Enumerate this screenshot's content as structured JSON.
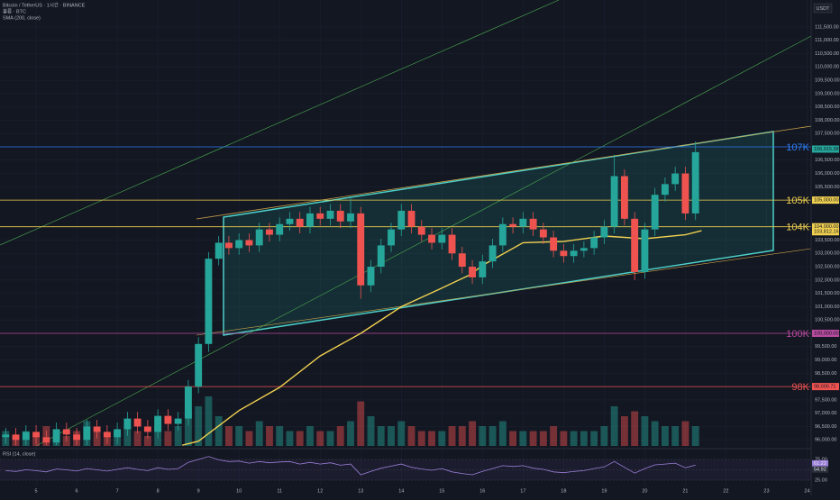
{
  "chart_data": {
    "type": "candlestick",
    "title": "Bitcoin / TetherUS · 1시간 · BINANCE",
    "subtitle": "볼륨 · BTC",
    "indicator_label": "SMA (200, close)",
    "currency": "USDT",
    "up_color": "#26a69a",
    "down_color": "#ef5350",
    "xlim": [
      4.11,
      24.1
    ],
    "xticks": [
      5,
      6,
      7,
      8,
      9,
      10,
      11,
      12,
      13,
      14,
      15,
      16,
      17,
      18,
      19,
      20,
      21,
      22,
      23,
      24
    ],
    "ylim": [
      95772,
      112512
    ],
    "yticks": [
      {
        "value": 96000,
        "label": "96,000.00"
      },
      {
        "value": 96500,
        "label": "96,500.00"
      },
      {
        "value": 97000,
        "label": "97,000.00"
      },
      {
        "value": 97500,
        "label": "97,500.00"
      },
      {
        "value": 98000,
        "label": "98,000.00"
      },
      {
        "value": 98500,
        "label": "98,500.00"
      },
      {
        "value": 99000,
        "label": "99,000.00"
      },
      {
        "value": 99500,
        "label": "99,500.00"
      },
      {
        "value": 100500,
        "label": "100,500.00"
      },
      {
        "value": 101000,
        "label": "101,000.00"
      },
      {
        "value": 101500,
        "label": "101,500.00"
      },
      {
        "value": 102000,
        "label": "102,000.00"
      },
      {
        "value": 102500,
        "label": "102,500.00"
      },
      {
        "value": 103000,
        "label": "103,000.00"
      },
      {
        "value": 103500,
        "label": "103,500.00"
      },
      {
        "value": 105500,
        "label": "105,500.00"
      },
      {
        "value": 106000,
        "label": "106,000.00"
      },
      {
        "value": 106500,
        "label": "106,500.00"
      },
      {
        "value": 107500,
        "label": "107,500.00"
      },
      {
        "value": 108000,
        "label": "108,000.00"
      },
      {
        "value": 108500,
        "label": "108,500.00"
      },
      {
        "value": 109000,
        "label": "109,000.00"
      },
      {
        "value": 109500,
        "label": "109,500.00"
      },
      {
        "value": 110000,
        "label": "110,000.00"
      },
      {
        "value": 110500,
        "label": "110,500.00"
      },
      {
        "value": 111000,
        "label": "111,000.00"
      },
      {
        "value": 111500,
        "label": "111,500.00"
      }
    ],
    "grid": true,
    "x": [
      4.25,
      4.5,
      4.75,
      5,
      5.25,
      5.5,
      5.75,
      6,
      6.25,
      6.5,
      6.75,
      7,
      7.25,
      7.5,
      7.75,
      8,
      8.25,
      8.5,
      8.75,
      9,
      9.25,
      9.5,
      9.75,
      10,
      10.25,
      10.5,
      10.75,
      11,
      11.25,
      11.5,
      11.75,
      12,
      12.25,
      12.5,
      12.75,
      13,
      13.25,
      13.5,
      13.75,
      14,
      14.25,
      14.5,
      14.75,
      15,
      15.25,
      15.5,
      15.75,
      16,
      16.25,
      16.5,
      16.75,
      17,
      17.25,
      17.5,
      17.75,
      18,
      18.25,
      18.5,
      18.75,
      19,
      19.25,
      19.5,
      19.75,
      20,
      20.25,
      20.5,
      20.75,
      21,
      21.25
    ],
    "open": [
      96100,
      96200,
      96000,
      96300,
      96100,
      95900,
      96400,
      96200,
      96000,
      96500,
      96300,
      96100,
      96400,
      96800,
      96500,
      96300,
      96900,
      96600,
      96800,
      98000,
      99600,
      102800,
      103400,
      103200,
      103500,
      103300,
      103900,
      103700,
      104100,
      104300,
      104000,
      104500,
      104300,
      104600,
      104200,
      104500,
      101800,
      102500,
      103300,
      103900,
      104600,
      104000,
      103700,
      103400,
      103700,
      103000,
      102500,
      102100,
      102700,
      103300,
      104100,
      104000,
      104300,
      103900,
      103600,
      103100,
      102900,
      103100,
      103200,
      103600,
      104000,
      105900,
      104300,
      102300,
      103900,
      105200,
      105600,
      106000,
      104500
    ],
    "high": [
      96450,
      96450,
      96550,
      96550,
      96350,
      96650,
      96650,
      96450,
      96750,
      96750,
      96550,
      96650,
      97050,
      97050,
      96750,
      97150,
      97150,
      97050,
      98250,
      99850,
      103050,
      103650,
      103650,
      103750,
      103750,
      104150,
      104150,
      104350,
      104550,
      104550,
      104750,
      104750,
      104850,
      104850,
      105100,
      104750,
      102750,
      103550,
      104150,
      104850,
      104850,
      104250,
      103950,
      103950,
      103950,
      103250,
      102750,
      102950,
      103550,
      104350,
      104350,
      104550,
      104550,
      104150,
      103850,
      103350,
      103350,
      103450,
      103850,
      104250,
      106700,
      106150,
      104550,
      104150,
      105450,
      105850,
      106250,
      106250,
      107200
    ],
    "low": [
      95850,
      95800,
      95800,
      95850,
      95800,
      95800,
      95950,
      95800,
      95800,
      96050,
      95850,
      95850,
      96150,
      96250,
      96050,
      96050,
      96350,
      96350,
      96550,
      97750,
      99300,
      102550,
      102950,
      102950,
      103050,
      103050,
      103450,
      103450,
      103850,
      103750,
      103750,
      104050,
      104050,
      103950,
      103950,
      101300,
      101550,
      102250,
      103050,
      103650,
      103750,
      103450,
      103150,
      103150,
      102750,
      102250,
      101850,
      101850,
      102450,
      103050,
      103750,
      103750,
      103650,
      103350,
      102850,
      102650,
      102650,
      102850,
      102950,
      103350,
      103750,
      104050,
      102000,
      102050,
      103650,
      104950,
      105350,
      104250,
      104250
    ],
    "close": [
      96200,
      96000,
      96300,
      96100,
      95900,
      96400,
      96200,
      96000,
      96500,
      96300,
      96100,
      96400,
      96800,
      96500,
      96300,
      96900,
      96600,
      96800,
      98000,
      99600,
      102800,
      103400,
      103200,
      103500,
      103300,
      103900,
      103700,
      104100,
      104300,
      104000,
      104500,
      104300,
      104600,
      104200,
      104500,
      101800,
      102500,
      103300,
      103900,
      104600,
      104000,
      103700,
      103400,
      103700,
      103000,
      102500,
      102100,
      102700,
      103300,
      104100,
      104000,
      104300,
      103900,
      103600,
      103100,
      102900,
      103100,
      103200,
      103600,
      104000,
      105900,
      104300,
      102300,
      103900,
      105200,
      105600,
      106000,
      104500,
      106800
    ],
    "volume": [
      3,
      2,
      3,
      2,
      4,
      3,
      2,
      3,
      5,
      3,
      2,
      3,
      4,
      3,
      2,
      4,
      3,
      4,
      7,
      8,
      10,
      6,
      4,
      4,
      3,
      5,
      4,
      4,
      3,
      3,
      4,
      3,
      3,
      4,
      5,
      9,
      6,
      4,
      4,
      5,
      4,
      3,
      3,
      3,
      4,
      4,
      5,
      4,
      4,
      5,
      3,
      3,
      3,
      3,
      4,
      3,
      3,
      3,
      3,
      4,
      8,
      6,
      7,
      6,
      5,
      4,
      4,
      5,
      4
    ],
    "sma": {
      "name": "SMA",
      "color": "#f0d050",
      "x": [
        8.6,
        9,
        10,
        11,
        12,
        13,
        14,
        15,
        15.7,
        16,
        17,
        18,
        19,
        20,
        21,
        21.4
      ],
      "values": [
        95800,
        95950,
        97100,
        97970,
        99150,
        100000,
        101000,
        101700,
        102200,
        102550,
        103400,
        103450,
        103650,
        103550,
        103700,
        103850
      ]
    },
    "levels": [
      {
        "value": 107000,
        "label": "107K",
        "color": "#2f7df6"
      },
      {
        "value": 105000,
        "label": "105K",
        "color": "#f0d050"
      },
      {
        "value": 104000,
        "label": "104K",
        "color": "#f0d050"
      },
      {
        "value": 100000,
        "label": "100K",
        "color": "#b84b9e"
      },
      {
        "value": 98000,
        "label": "98K",
        "color": "#ef5350"
      }
    ],
    "price_tags": [
      {
        "value": 106915.38,
        "label": "106,915.38",
        "color": "#26a69a"
      },
      {
        "value": 105000,
        "label": "105,000.00",
        "color": "#f0d050"
      },
      {
        "value": 104000,
        "label": "104,000.00",
        "color": "#f0d050"
      },
      {
        "value": 103812.16,
        "label": "103,812.16",
        "color": "#f0d050"
      },
      {
        "value": 100000,
        "label": "100,000.00",
        "color": "#b84b9e"
      },
      {
        "value": 98000.71,
        "label": "98,000.71",
        "color": "#ef5350"
      }
    ],
    "rsi": {
      "name": "RSI (14, close)",
      "color": "#9c7fd8",
      "ylim": [
        9.8,
        96.7
      ],
      "yticks": [
        {
          "value": 75,
          "label": "75.00"
        },
        {
          "value": 50,
          "label": "50.00"
        },
        {
          "value": 25,
          "label": "25.00"
        }
      ],
      "values": [
        48,
        46,
        50,
        48,
        45,
        52,
        50,
        47,
        53,
        50,
        47,
        51,
        55,
        51,
        48,
        55,
        51,
        53,
        68,
        75,
        82,
        74,
        70,
        71,
        66,
        70,
        67,
        69,
        70,
        64,
        68,
        64,
        67,
        61,
        64,
        38,
        46,
        54,
        59,
        64,
        56,
        52,
        49,
        53,
        45,
        41,
        38,
        46,
        53,
        60,
        58,
        60,
        54,
        51,
        45,
        43,
        46,
        48,
        53,
        57,
        70,
        56,
        42,
        53,
        62,
        64,
        66,
        55,
        61.22
      ],
      "tags": [
        61.22,
        54.92
      ]
    }
  }
}
